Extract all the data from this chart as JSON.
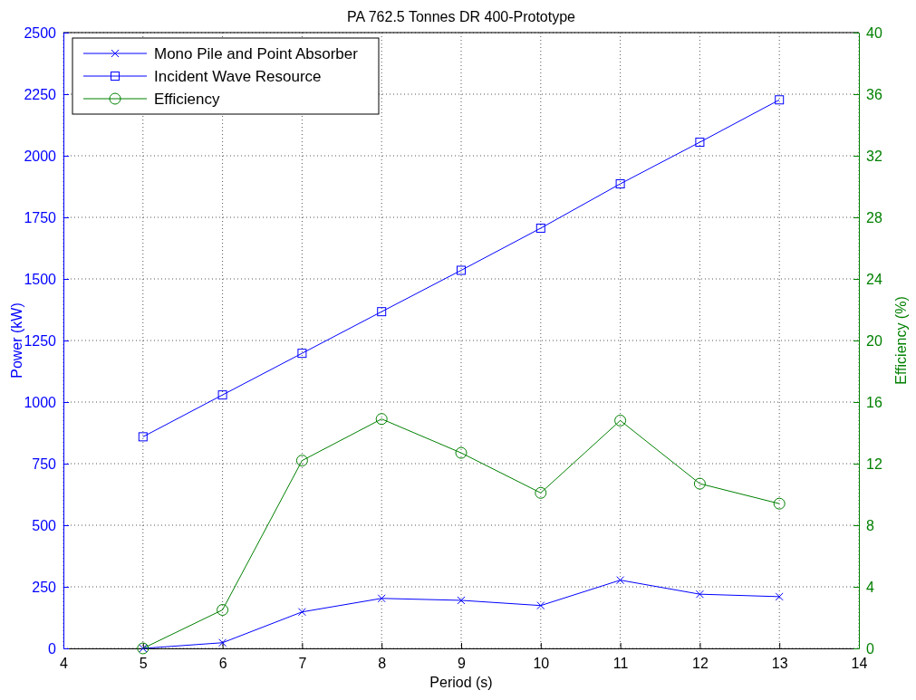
{
  "chart_data": {
    "type": "line",
    "title": "PA 762.5 Tonnes DR 400-Prototype",
    "xlabel": "Period (s)",
    "ylabel": "Power (kW)",
    "y2label": "Efficiency (%)",
    "x": [
      5,
      6,
      7,
      8,
      9,
      10,
      11,
      12,
      13
    ],
    "series": [
      {
        "name": "Mono Pile and Point Absorber",
        "color": "#0000ff",
        "marker": "cross",
        "values": [
          0,
          23,
          148,
          203,
          195,
          174,
          277,
          220,
          210
        ]
      },
      {
        "name": "Incident Wave Resource",
        "color": "#0000ff",
        "marker": "square",
        "values": [
          859,
          1029,
          1198,
          1367,
          1535,
          1706,
          1886,
          2055,
          2227
        ]
      },
      {
        "name": "Efficiency",
        "color": "#008000",
        "marker": "circle",
        "axis": "y2",
        "values": [
          0,
          2.5,
          12.2,
          14.9,
          12.7,
          10.1,
          14.8,
          10.7,
          9.4
        ]
      }
    ],
    "xlim": [
      4,
      14
    ],
    "xticks": [
      4,
      5,
      6,
      7,
      8,
      9,
      10,
      11,
      12,
      13,
      14
    ],
    "ylim": [
      0,
      2500
    ],
    "yticks": [
      0,
      250,
      500,
      750,
      1000,
      1250,
      1500,
      1750,
      2000,
      2250,
      2500
    ],
    "y2lim": [
      0,
      40
    ],
    "y2ticks": [
      0,
      4,
      8,
      12,
      16,
      20,
      24,
      28,
      32,
      36,
      40
    ],
    "grid": true,
    "legend": "top left",
    "line_style": "solid"
  }
}
